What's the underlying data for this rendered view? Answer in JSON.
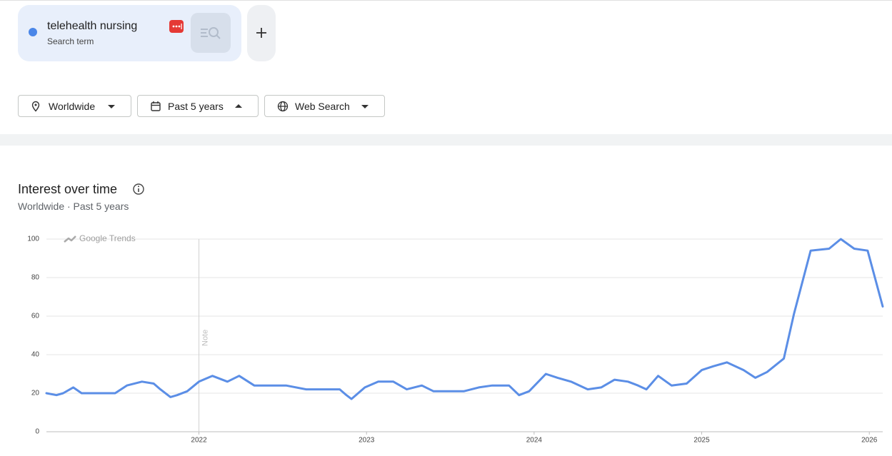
{
  "header": {
    "term_type": "Search term"
  },
  "filters": [
    "Worldwide",
    "Past 5 years",
    "Web Search"
  ],
  "chart_data": {
    "type": "line",
    "title": "Interest over time",
    "subtitle": "Worldwide · Past 5 years",
    "watermark": "Google Trends",
    "note": {
      "x": 2022,
      "label": "Note"
    },
    "x": [
      2021.09,
      2021.15,
      2021.19,
      2021.25,
      2021.3,
      2021.39,
      2021.5,
      2021.57,
      2021.66,
      2021.73,
      2021.77,
      2021.83,
      2021.87,
      2021.93,
      2022.0,
      2022.08,
      2022.17,
      2022.24,
      2022.33,
      2022.52,
      2022.64,
      2022.84,
      2022.88,
      2022.91,
      2022.99,
      2023.07,
      2023.16,
      2023.24,
      2023.33,
      2023.4,
      2023.58,
      2023.67,
      2023.75,
      2023.85,
      2023.91,
      2023.97,
      2024.07,
      2024.14,
      2024.22,
      2024.32,
      2024.4,
      2024.48,
      2024.56,
      2024.62,
      2024.67,
      2024.74,
      2024.82,
      2024.91,
      2025.0,
      2025.07,
      2025.15,
      2025.25,
      2025.32,
      2025.39,
      2025.49,
      2025.55,
      2025.65,
      2025.76,
      2025.83,
      2025.91,
      2025.99,
      2026.08
    ],
    "series": [
      {
        "name": "telehealth nursing",
        "color": "#5b8ee6",
        "values": [
          20,
          19,
          20,
          23,
          20,
          20,
          20,
          24,
          26,
          25,
          22,
          18,
          19,
          21,
          26,
          29,
          26,
          29,
          24,
          24,
          22,
          22,
          19,
          17,
          23,
          26,
          26,
          22,
          24,
          21,
          21,
          23,
          24,
          24,
          19,
          21,
          30,
          28,
          26,
          22,
          23,
          27,
          26,
          24,
          22,
          29,
          24,
          25,
          32,
          34,
          36,
          32,
          28,
          31,
          38,
          61,
          94,
          95,
          100,
          95,
          94,
          65
        ]
      }
    ],
    "xlim": [
      2021.09,
      2026.08
    ],
    "xticks": [
      2022,
      2023,
      2024,
      2025,
      2026
    ],
    "ylim": [
      0,
      100
    ],
    "yticks": [
      0,
      20,
      40,
      60,
      80,
      100
    ],
    "grid": true
  }
}
